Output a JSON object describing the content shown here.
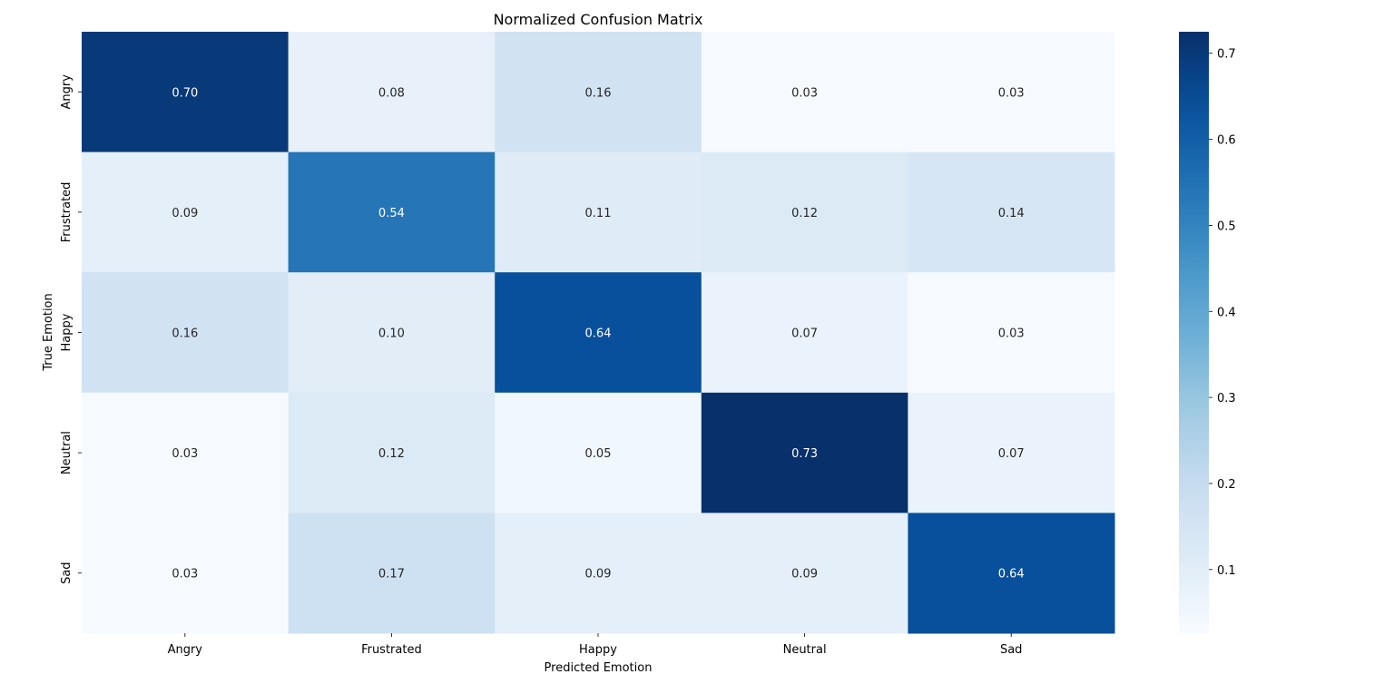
{
  "chart_data": {
    "type": "heatmap",
    "title": "Normalized Confusion Matrix",
    "xlabel": "Predicted Emotion",
    "ylabel": "True Emotion",
    "x_categories": [
      "Angry",
      "Frustrated",
      "Happy",
      "Neutral",
      "Sad"
    ],
    "y_categories": [
      "Angry",
      "Frustrated",
      "Happy",
      "Neutral",
      "Sad"
    ],
    "values": [
      [
        0.7,
        0.08,
        0.16,
        0.03,
        0.03
      ],
      [
        0.09,
        0.54,
        0.11,
        0.12,
        0.14
      ],
      [
        0.16,
        0.1,
        0.64,
        0.07,
        0.03
      ],
      [
        0.03,
        0.12,
        0.05,
        0.73,
        0.07
      ],
      [
        0.03,
        0.17,
        0.09,
        0.09,
        0.64
      ]
    ],
    "cell_labels": [
      [
        "0.70",
        "0.08",
        "0.16",
        "0.03",
        "0.03"
      ],
      [
        "0.09",
        "0.54",
        "0.11",
        "0.12",
        "0.14"
      ],
      [
        "0.16",
        "0.10",
        "0.64",
        "0.07",
        "0.03"
      ],
      [
        "0.03",
        "0.12",
        "0.05",
        "0.73",
        "0.07"
      ],
      [
        "0.03",
        "0.17",
        "0.09",
        "0.09",
        "0.64"
      ]
    ],
    "colormap": "Blues",
    "color_range": [
      0.026,
      0.725
    ],
    "colorbar": {
      "ticks": [
        0.1,
        0.2,
        0.3,
        0.4,
        0.5,
        0.6,
        0.7
      ],
      "tick_labels": [
        "0.1",
        "0.2",
        "0.3",
        "0.4",
        "0.5",
        "0.6",
        "0.7"
      ]
    },
    "grid": false,
    "legend": "colorbar-right"
  }
}
